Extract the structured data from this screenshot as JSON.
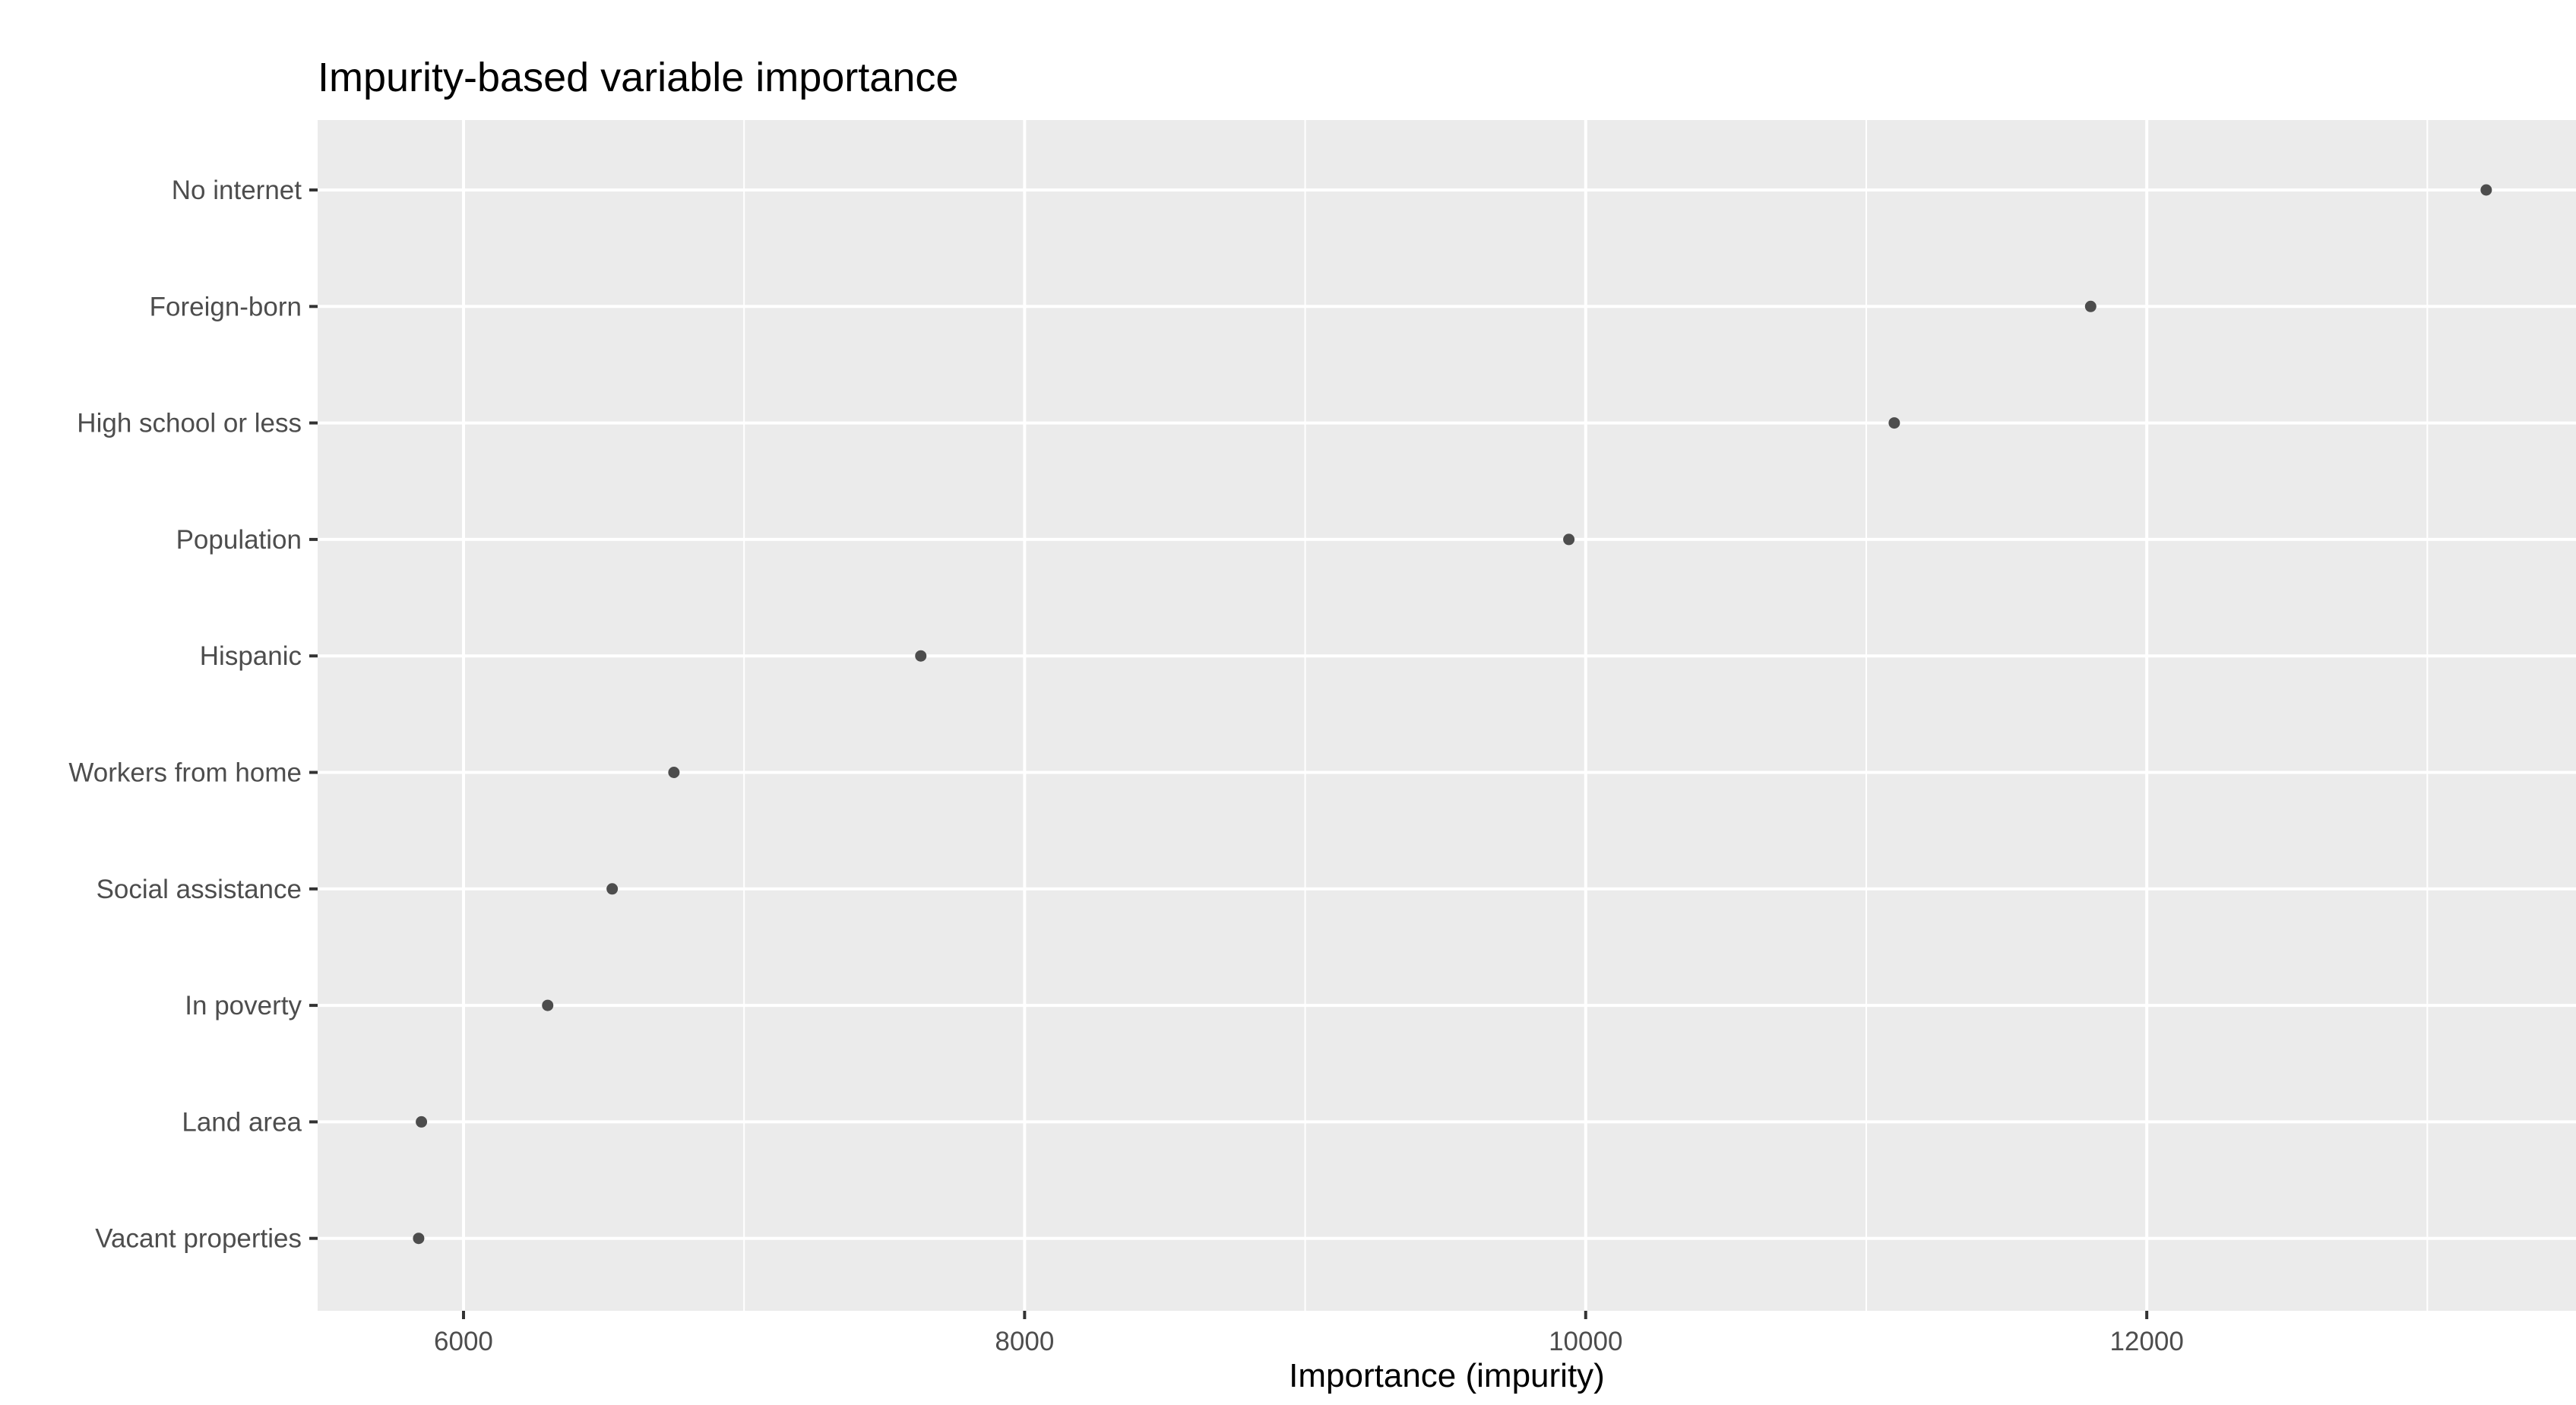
{
  "chart_data": {
    "type": "scatter",
    "title": "Impurity-based variable importance",
    "xlabel": "Importance (impurity)",
    "ylabel": "",
    "xlim": [
      5480,
      13530
    ],
    "x_major_ticks": [
      6000,
      8000,
      10000,
      12000
    ],
    "x_minor_ticks": [
      7000,
      9000,
      11000,
      13000
    ],
    "x_tick_labels": [
      "6000",
      "8000",
      "10000",
      "12000"
    ],
    "grid": true,
    "legend": "none",
    "colors": {
      "panel_background": "#ebebeb",
      "grid_line": "#ffffff",
      "point": "#4d4d4d",
      "tick_label": "#4d4d4d",
      "axis_tick": "#333333"
    },
    "categories": [
      "No internet",
      "Foreign-born",
      "High school or less",
      "Population",
      "Hispanic",
      "Workers from home",
      "Social assistance",
      "In poverty",
      "Land area",
      "Vacant properties"
    ],
    "values": [
      13210,
      11800,
      11100,
      9940,
      7630,
      6750,
      6530,
      6300,
      5850,
      5840
    ]
  }
}
